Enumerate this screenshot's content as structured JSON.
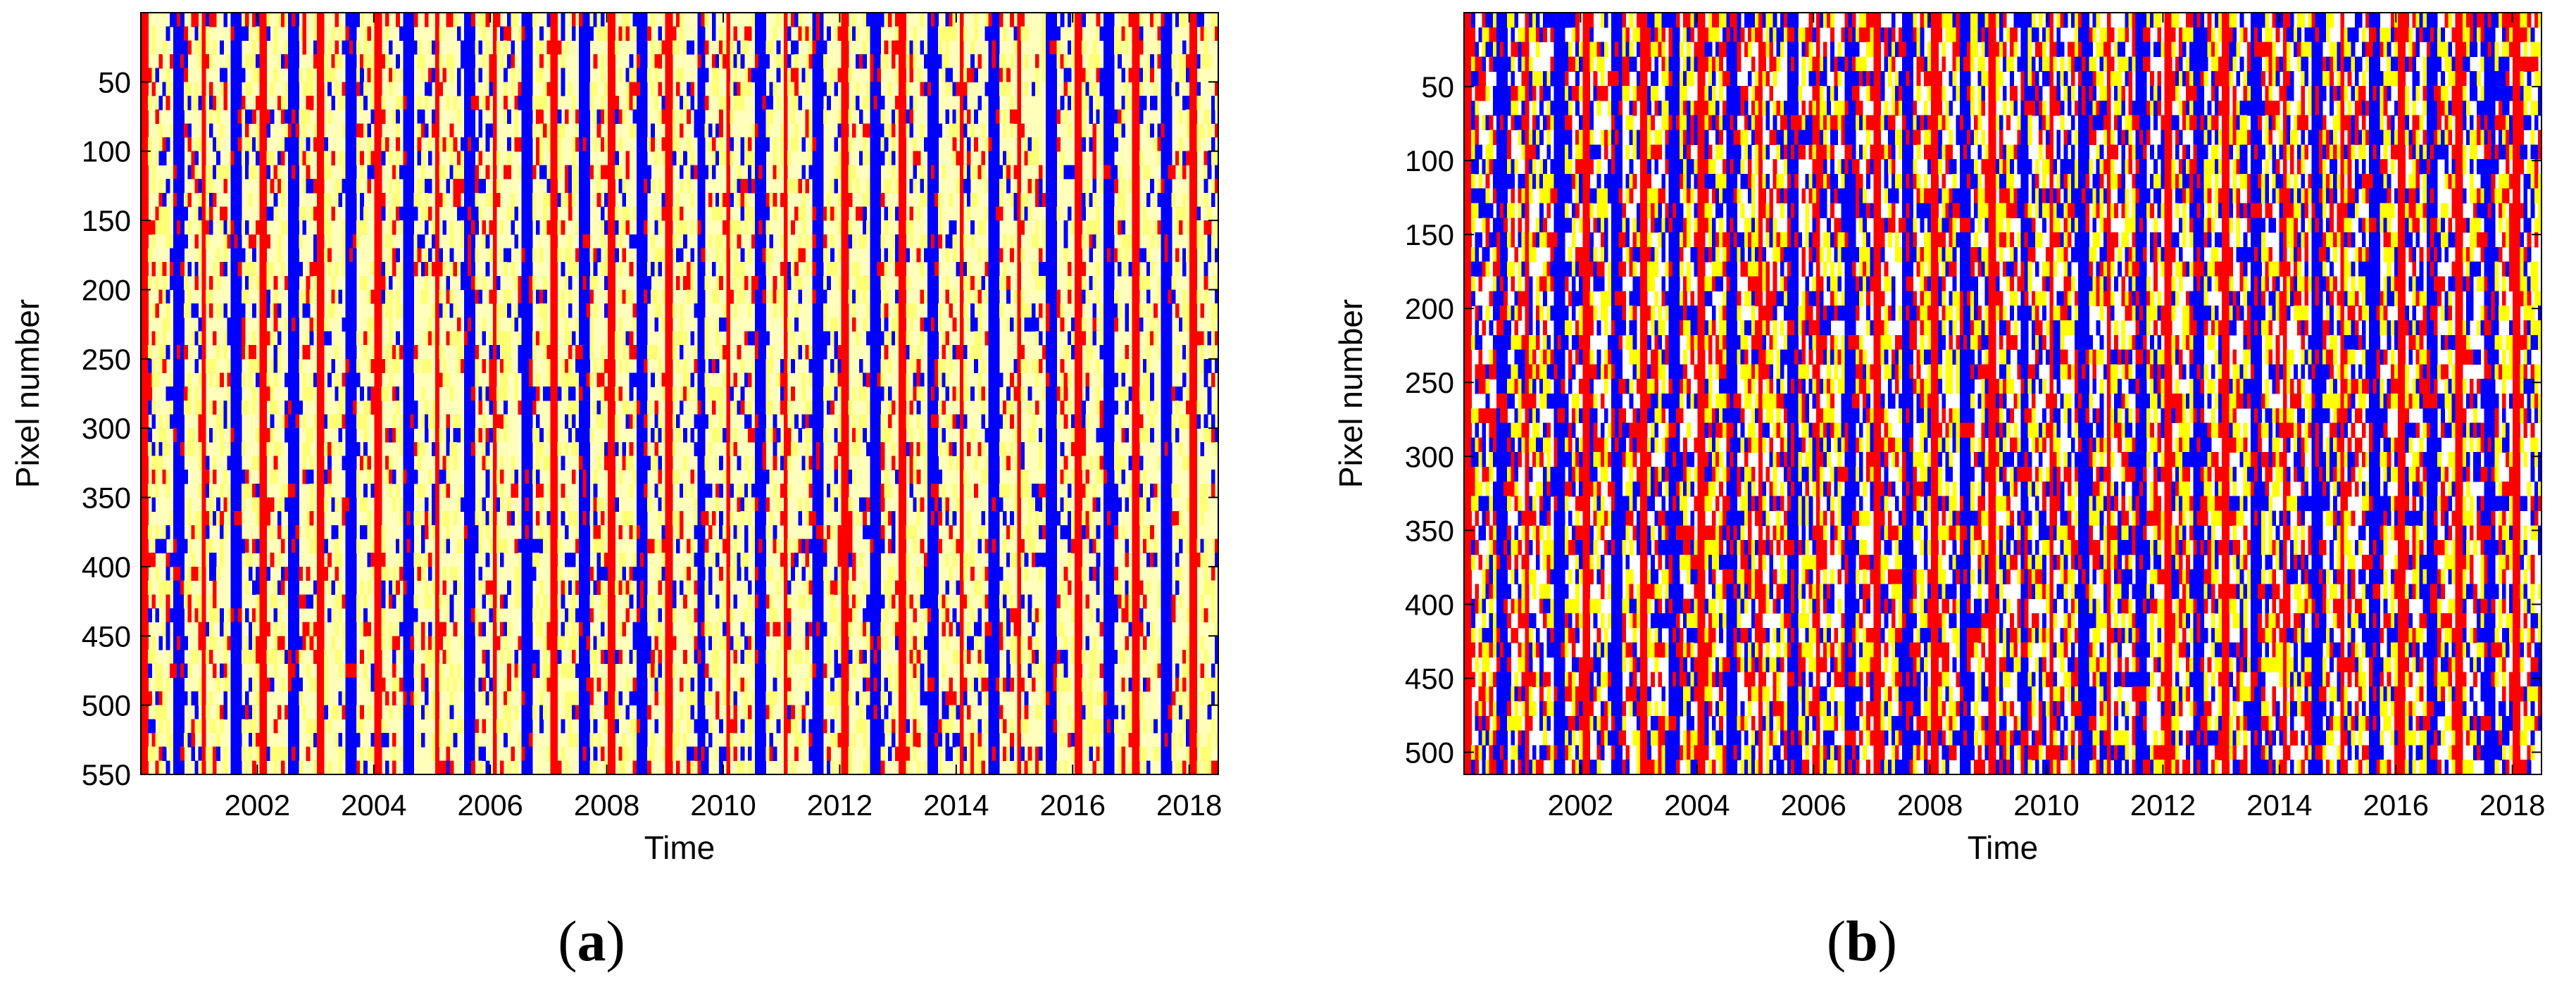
{
  "chart_data": [
    {
      "type": "heatmap",
      "panel_label": "a",
      "xlabel": "Time",
      "ylabel": "Pixel number",
      "xlim": [
        2000,
        2018.5
      ],
      "ylim": [
        0,
        550
      ],
      "x_ticks": [
        2002,
        2004,
        2006,
        2008,
        2010,
        2012,
        2014,
        2016,
        2018
      ],
      "y_ticks": [
        50,
        100,
        150,
        200,
        250,
        300,
        350,
        400,
        450,
        500,
        550
      ],
      "classes": [
        {
          "id": "high",
          "color": "#ff0000"
        },
        {
          "id": "mid",
          "color": "#ffff77"
        },
        {
          "id": "low",
          "color": "#0000ff"
        }
      ],
      "background_color": "#ffffbb",
      "columns": 300,
      "rows": 55,
      "pattern": {
        "red_phase": 0.08,
        "blue_phase": 0.62,
        "noise": 0.25,
        "seed": 7
      }
    },
    {
      "type": "heatmap",
      "panel_label": "b",
      "xlabel": "Time",
      "ylabel": "Pixel number",
      "xlim": [
        2000,
        2018.5
      ],
      "ylim": [
        0,
        515
      ],
      "x_ticks": [
        2002,
        2004,
        2006,
        2008,
        2010,
        2012,
        2014,
        2016,
        2018
      ],
      "y_ticks": [
        50,
        100,
        150,
        200,
        250,
        300,
        350,
        400,
        450,
        500
      ],
      "classes": [
        {
          "id": "high",
          "color": "#ff0000"
        },
        {
          "id": "mid",
          "color": "#ffff00"
        },
        {
          "id": "low",
          "color": "#0000ff"
        }
      ],
      "background_color": "#ffffff",
      "columns": 300,
      "rows": 52,
      "pattern": {
        "red_phase": 0.08,
        "blue_phase": 0.62,
        "noise": 0.55,
        "seed": 19
      }
    }
  ],
  "captions": {
    "a": {
      "open": "(",
      "letter": "a",
      "close": ")"
    },
    "b": {
      "open": "(",
      "letter": "b",
      "close": ")"
    }
  }
}
